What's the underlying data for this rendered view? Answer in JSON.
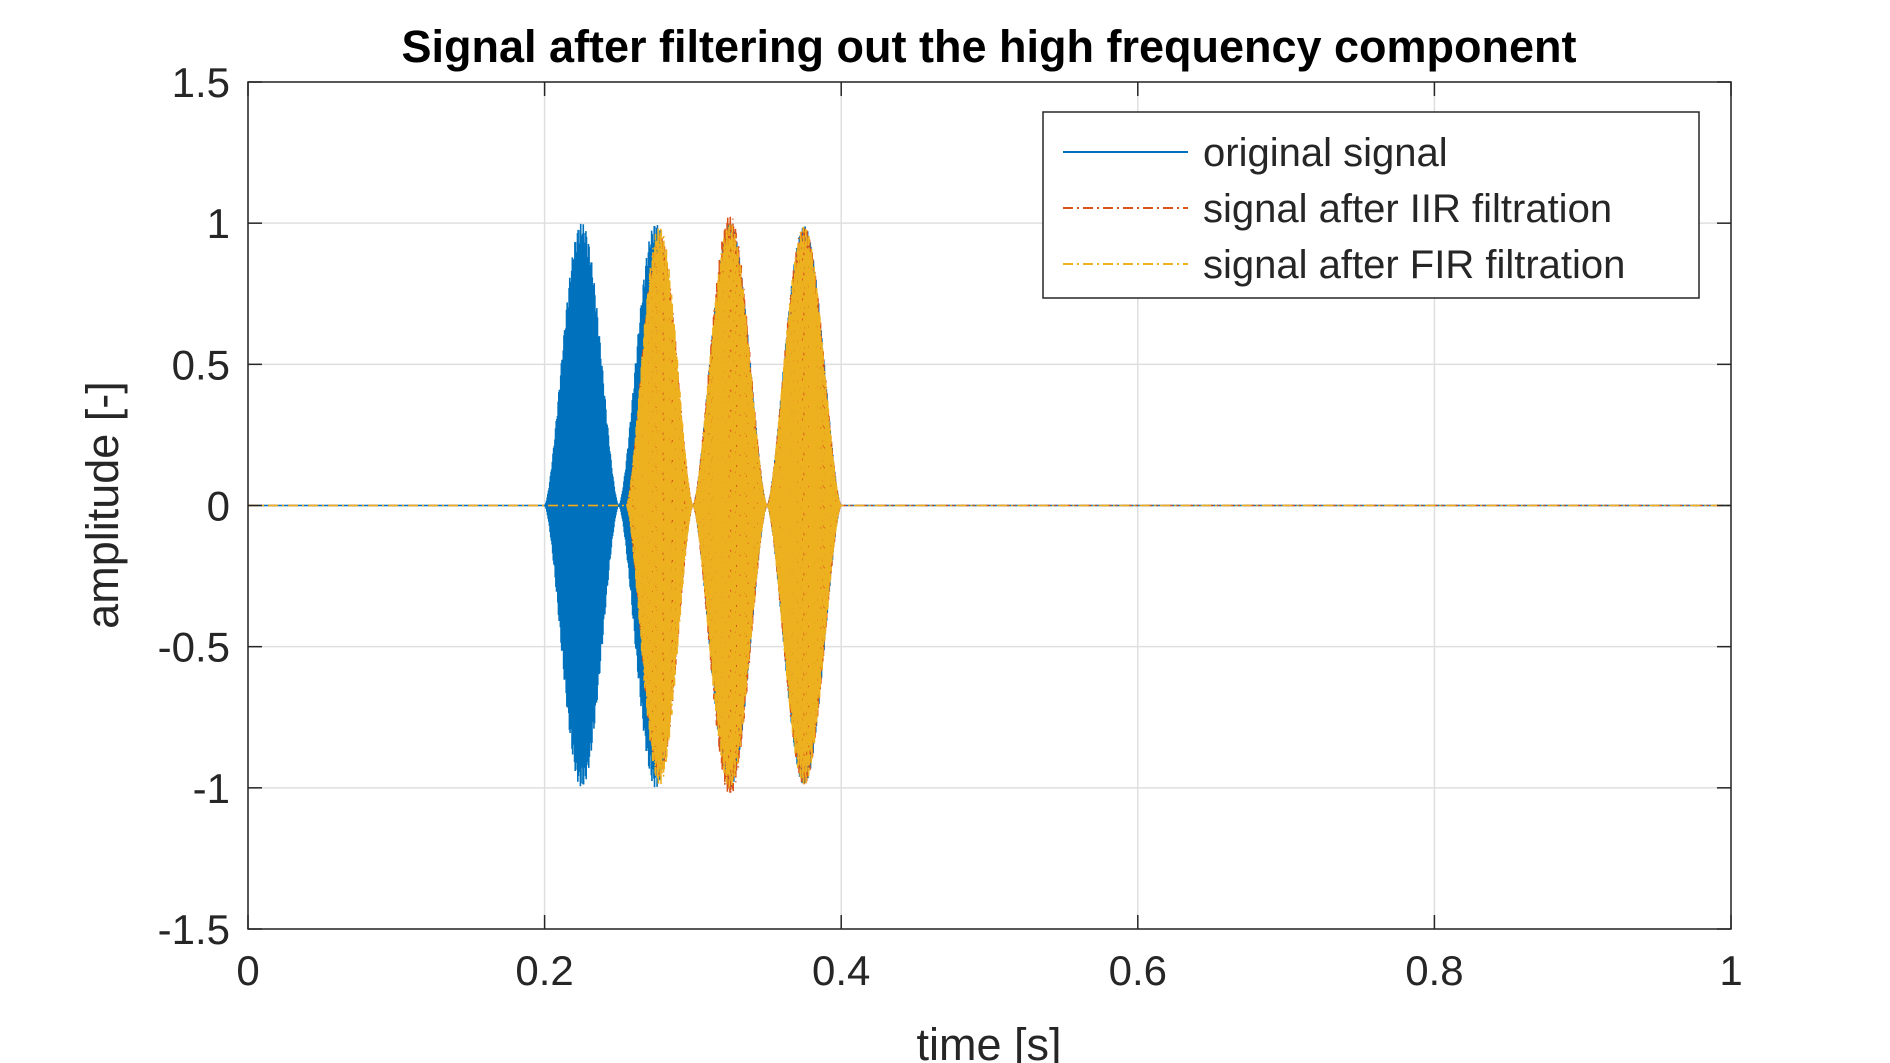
{
  "chart_data": {
    "type": "line",
    "title": "Signal after filtering out the high frequency component",
    "xlabel": "time [s]",
    "ylabel": "amplitude [-]",
    "xlim": [
      0,
      1
    ],
    "ylim": [
      -1.5,
      1.5
    ],
    "xticks": [
      0,
      0.2,
      0.4,
      0.6,
      0.8,
      1
    ],
    "xtick_labels": [
      "0",
      "0.2",
      "0.4",
      "0.6",
      "0.8",
      "1"
    ],
    "yticks": [
      -1.5,
      -1,
      -0.5,
      0,
      0.5,
      1,
      1.5
    ],
    "ytick_labels": [
      "-1.5",
      "-1",
      "-0.5",
      "0",
      "0.5",
      "1",
      "1.5"
    ],
    "grid": true,
    "legend_position": "top-right",
    "series": [
      {
        "name": "original signal",
        "color": "#0072BD",
        "line_style": "solid",
        "bursts": [
          {
            "start": 0.2,
            "end": 0.25,
            "peak": 1.0
          },
          {
            "start": 0.25,
            "end": 0.3,
            "peak": 1.0
          },
          {
            "start": 0.3,
            "end": 0.35,
            "peak": 1.0
          },
          {
            "start": 0.35,
            "end": 0.4,
            "peak": 0.99
          }
        ]
      },
      {
        "name": "signal after IIR filtration",
        "color": "#D95319",
        "line_style": "dash-dot",
        "bursts": [
          {
            "start": 0.255,
            "end": 0.3,
            "peak": 0.96
          },
          {
            "start": 0.3,
            "end": 0.35,
            "peak": 1.03
          },
          {
            "start": 0.35,
            "end": 0.4,
            "peak": 0.99
          }
        ]
      },
      {
        "name": "signal after FIR filtration",
        "color": "#EDB120",
        "line_style": "dash-dot",
        "bursts": [
          {
            "start": 0.255,
            "end": 0.3,
            "peak": 0.99
          },
          {
            "start": 0.3,
            "end": 0.35,
            "peak": 1.0
          },
          {
            "start": 0.35,
            "end": 0.4,
            "peak": 0.99
          }
        ]
      }
    ]
  }
}
